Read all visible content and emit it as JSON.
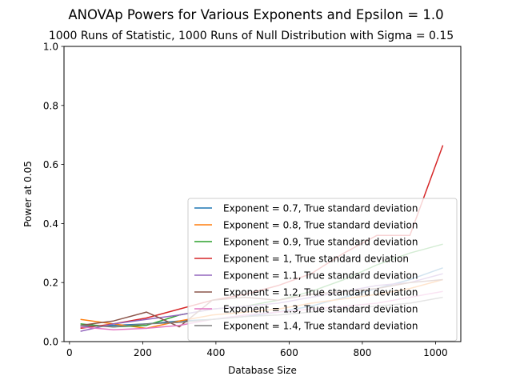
{
  "chart_data": {
    "type": "line",
    "title": "ANOVAp Powers for Various Exponents and Epsilon = 1.0",
    "subtitle": "1000 Runs of Statistic, 1000 Runs of Null Distribution with Sigma = 0.15",
    "xlabel": "Database Size",
    "ylabel": "Power at 0.05",
    "xlim": [
      -15,
      1069
    ],
    "ylim": [
      0,
      1.0
    ],
    "xticks": [
      0,
      200,
      400,
      600,
      800,
      1000
    ],
    "yticks": [
      0.0,
      0.2,
      0.4,
      0.6,
      0.8,
      1.0
    ],
    "xtick_labels": [
      "0",
      "200",
      "400",
      "600",
      "800",
      "1000"
    ],
    "ytick_labels": [
      "0.0",
      "0.2",
      "0.4",
      "0.6",
      "0.8",
      "1.0"
    ],
    "legend_position": "lower-right",
    "grid": false,
    "x": [
      30,
      120,
      210,
      300,
      390,
      480,
      570,
      660,
      750,
      840,
      930,
      1020
    ],
    "series": [
      {
        "name": "Exponent = 0.7, True standard deviation",
        "color": "#1f77b4",
        "values": [
          0.05,
          0.055,
          0.06,
          0.07,
          0.075,
          0.085,
          0.1,
          0.12,
          0.15,
          0.18,
          0.21,
          0.25
        ]
      },
      {
        "name": "Exponent = 0.8, True standard deviation",
        "color": "#ff7f0e",
        "values": [
          0.075,
          0.06,
          0.045,
          0.07,
          0.09,
          0.1,
          0.11,
          0.13,
          0.145,
          0.16,
          0.18,
          0.21
        ]
      },
      {
        "name": "Exponent = 0.9, True standard deviation",
        "color": "#2ca02c",
        "values": [
          0.06,
          0.05,
          0.055,
          0.09,
          0.11,
          0.12,
          0.14,
          0.17,
          0.21,
          0.26,
          0.3,
          0.33
        ]
      },
      {
        "name": "Exponent = 1, True standard deviation",
        "color": "#d62728",
        "values": [
          0.045,
          0.06,
          0.08,
          0.11,
          0.14,
          0.16,
          0.19,
          0.23,
          0.3,
          0.36,
          0.36,
          0.665
        ]
      },
      {
        "name": "Exponent = 1.1, True standard deviation",
        "color": "#9467bd",
        "values": [
          0.035,
          0.06,
          0.075,
          0.09,
          0.11,
          0.12,
          0.13,
          0.15,
          0.17,
          0.19,
          0.2,
          0.23
        ]
      },
      {
        "name": "Exponent = 1.2, True standard deviation",
        "color": "#8c564b",
        "values": [
          0.055,
          0.07,
          0.1,
          0.05,
          0.14,
          0.15,
          0.14,
          0.16,
          0.17,
          0.18,
          0.2,
          0.21
        ]
      },
      {
        "name": "Exponent = 1.3, True standard deviation",
        "color": "#e377c2",
        "values": [
          0.05,
          0.04,
          0.045,
          0.055,
          0.075,
          0.09,
          0.1,
          0.11,
          0.12,
          0.13,
          0.15,
          0.17
        ]
      },
      {
        "name": "Exponent = 1.4, True standard deviation",
        "color": "#7f7f7f",
        "values": [
          0.055,
          0.05,
          0.06,
          0.065,
          0.075,
          0.085,
          0.09,
          0.1,
          0.11,
          0.12,
          0.13,
          0.15
        ]
      }
    ]
  }
}
